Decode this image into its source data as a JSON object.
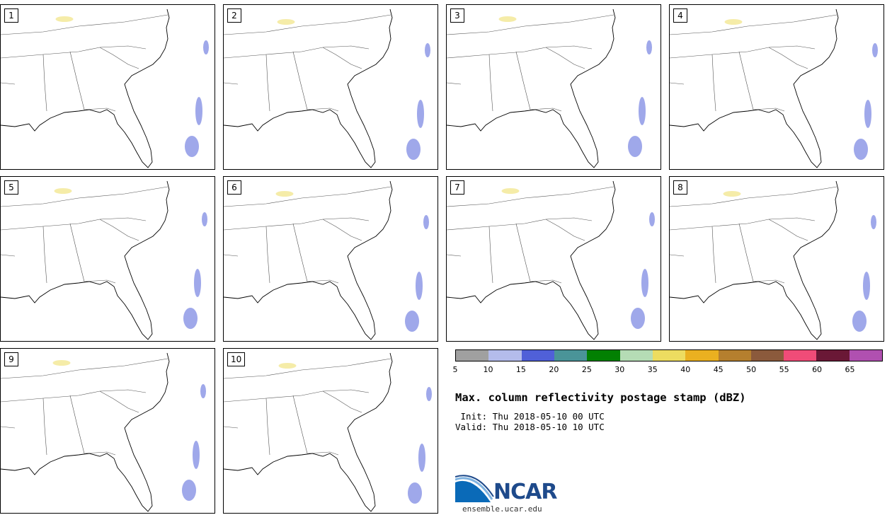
{
  "panels": [
    {
      "label": "1"
    },
    {
      "label": "2"
    },
    {
      "label": "3"
    },
    {
      "label": "4"
    },
    {
      "label": "5"
    },
    {
      "label": "6"
    },
    {
      "label": "7"
    },
    {
      "label": "8"
    },
    {
      "label": "9"
    },
    {
      "label": "10"
    }
  ],
  "colorbar": {
    "ticks": [
      "5",
      "10",
      "15",
      "20",
      "25",
      "30",
      "35",
      "40",
      "45",
      "50",
      "55",
      "60",
      "65"
    ],
    "colors": [
      "#a0a0a0",
      "#b4bceb",
      "#5060d8",
      "#4a9498",
      "#028002",
      "#b5dcb5",
      "#eddc60",
      "#eab020",
      "#b57f2e",
      "#8b5a3c",
      "#f04c78",
      "#6a1836",
      "#b050b0"
    ]
  },
  "title": "Max. column reflectivity postage stamp (dBZ)",
  "init": " Init: Thu 2018-05-10 00 UTC",
  "valid": "Valid: Thu 2018-05-10 10 UTC",
  "logo": {
    "text": "NCAR",
    "site": "ensemble.ucar.edu"
  }
}
